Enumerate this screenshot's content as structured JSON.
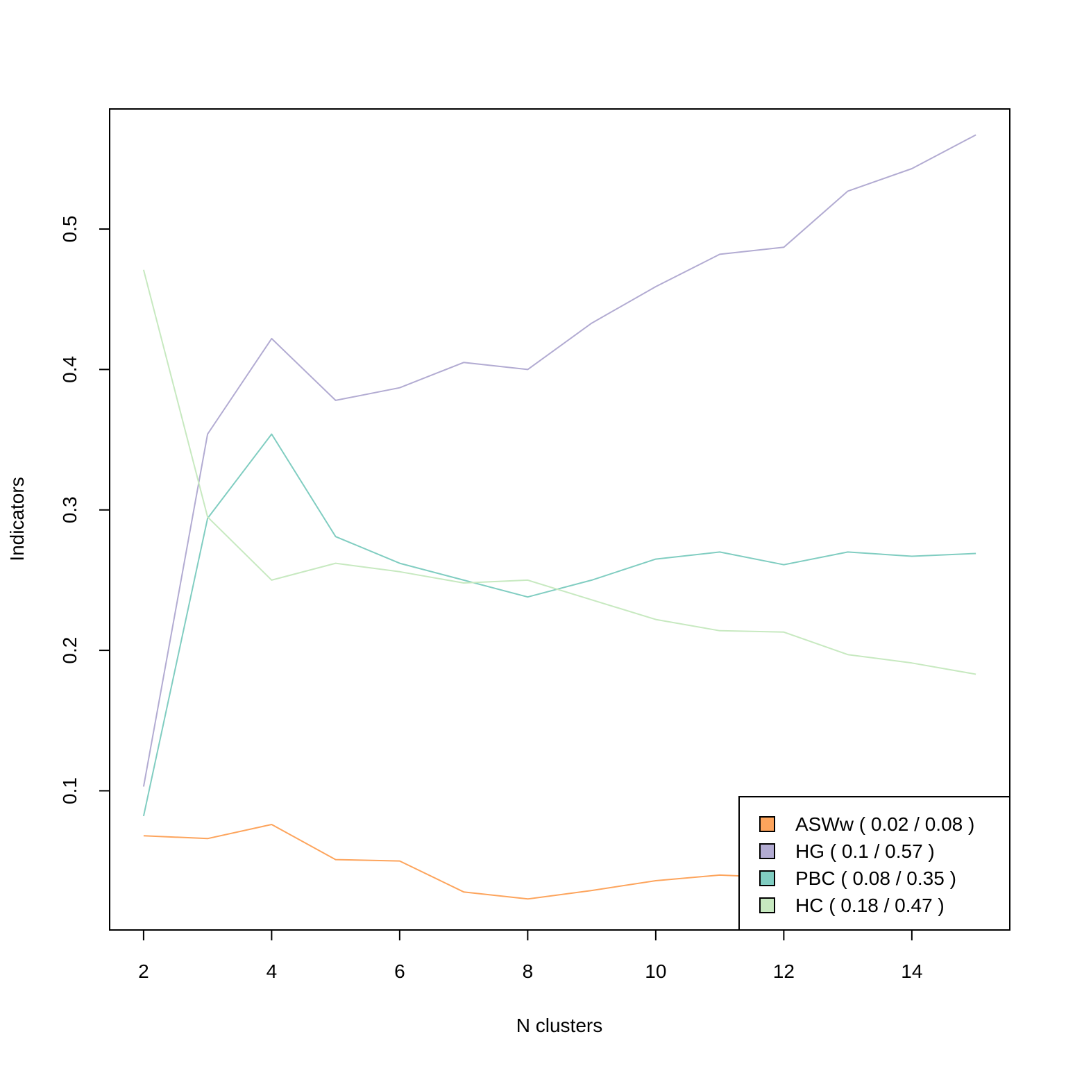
{
  "chart_data": {
    "type": "line",
    "xlabel": "N clusters",
    "ylabel": "Indicators",
    "xlim": [
      1.47,
      15.53
    ],
    "ylim": [
      0.0009,
      0.5855
    ],
    "x_ticks": [
      2,
      4,
      6,
      8,
      10,
      12,
      14
    ],
    "y_ticks": [
      0.1,
      0.2,
      0.3,
      0.4,
      0.5
    ],
    "x_tick_labels": [
      "2",
      "4",
      "6",
      "8",
      "10",
      "12",
      "14"
    ],
    "y_tick_labels": [
      "0.1",
      "0.2",
      "0.3",
      "0.4",
      "0.5"
    ],
    "grid": false,
    "legend_position": "bottom-right",
    "x": [
      2,
      3,
      4,
      5,
      6,
      7,
      8,
      9,
      10,
      11,
      12,
      13,
      14,
      15
    ],
    "series": [
      {
        "name": "ASWw",
        "legend_label": "ASWw ( 0.02 / 0.08 )",
        "color": "#FDA45C",
        "values": [
          0.068,
          0.066,
          0.076,
          0.051,
          0.05,
          0.028,
          0.023,
          0.029,
          0.036,
          0.04,
          0.038,
          0.036,
          0.034,
          0.033
        ]
      },
      {
        "name": "HG",
        "legend_label": "HG ( 0.1 / 0.57 )",
        "color": "#B2ABD2",
        "values": [
          0.103,
          0.354,
          0.422,
          0.378,
          0.387,
          0.405,
          0.4,
          0.433,
          0.459,
          0.482,
          0.487,
          0.527,
          0.543,
          0.567
        ]
      },
      {
        "name": "PBC",
        "legend_label": "PBC ( 0.08 / 0.35 )",
        "color": "#80CDC1",
        "values": [
          0.082,
          0.294,
          0.354,
          0.281,
          0.262,
          0.25,
          0.238,
          0.25,
          0.265,
          0.27,
          0.261,
          0.27,
          0.267,
          0.269
        ]
      },
      {
        "name": "HC",
        "legend_label": "HC ( 0.18 / 0.47 )",
        "color": "#C7E9C0",
        "values": [
          0.471,
          0.295,
          0.25,
          0.262,
          0.256,
          0.248,
          0.25,
          0.236,
          0.222,
          0.214,
          0.213,
          0.197,
          0.191,
          0.183
        ]
      }
    ]
  }
}
